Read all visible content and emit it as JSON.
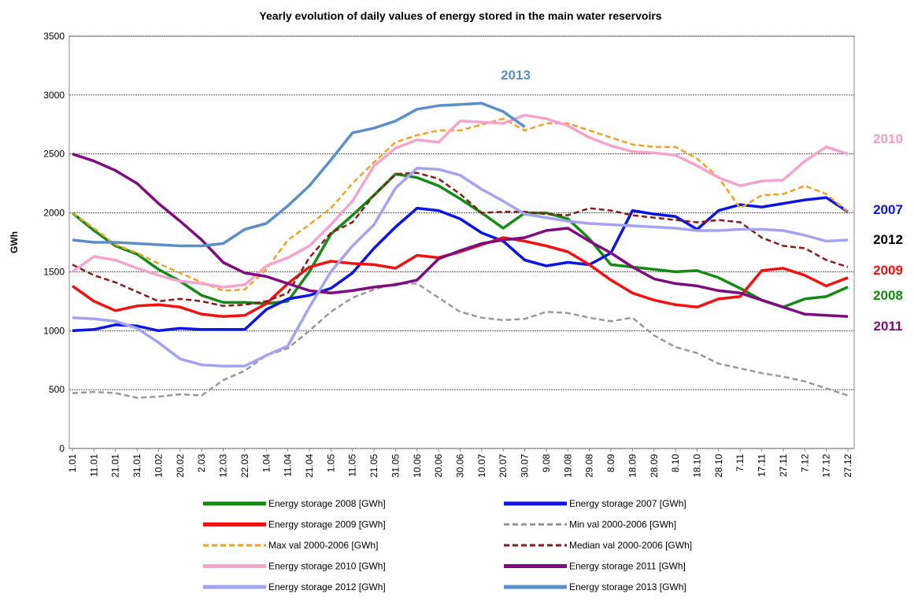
{
  "chart_data": {
    "type": "line",
    "title": "Yearly evolution of daily values of energy stored in the main water reservoirs",
    "y_label": "GWh",
    "categories": [
      "1.01",
      "11.01",
      "21.01",
      "31.01",
      "10.02",
      "20.02",
      "2.03",
      "12.03",
      "22.03",
      "1.04",
      "11.04",
      "21.04",
      "1.05",
      "11.05",
      "21.05",
      "31.05",
      "10.06",
      "20.06",
      "30.06",
      "10.07",
      "20.07",
      "30.07",
      "9.08",
      "19.08",
      "29.08",
      "8.09",
      "18.09",
      "28.09",
      "8.10",
      "18.10",
      "28.10",
      "7.11",
      "17.11",
      "27.11",
      "7.12",
      "17.12",
      "27.12"
    ],
    "ylim": [
      0,
      3500
    ],
    "yticks": [
      0,
      500,
      1000,
      1500,
      2000,
      2500,
      3000,
      3500
    ],
    "grid": true,
    "series": [
      {
        "name": "Energy storage 2008 [GWh]",
        "color": "#138a13",
        "dash": false,
        "values": [
          2000,
          1850,
          1720,
          1650,
          1520,
          1420,
          1300,
          1240,
          1240,
          1230,
          1250,
          1500,
          1820,
          1980,
          2150,
          2330,
          2300,
          2230,
          2120,
          2000,
          1870,
          2000,
          2000,
          1950,
          1780,
          1560,
          1540,
          1520,
          1500,
          1510,
          1450,
          1360,
          1260,
          1200,
          1270,
          1290,
          1370
        ]
      },
      {
        "name": "Energy storage 2007 [GWh]",
        "color": "#0a14e6",
        "dash": false,
        "values": [
          1000,
          1010,
          1050,
          1040,
          1000,
          1020,
          1010,
          1010,
          1010,
          1180,
          1270,
          1300,
          1360,
          1490,
          1700,
          1880,
          2040,
          2020,
          1950,
          1830,
          1760,
          1600,
          1550,
          1580,
          1560,
          1660,
          2020,
          1990,
          1970,
          1860,
          2020,
          2070,
          2050,
          2080,
          2110,
          2130,
          2010
        ]
      },
      {
        "name": "Energy storage 2009 [GWh]",
        "color": "#f21010",
        "dash": false,
        "values": [
          1380,
          1250,
          1170,
          1210,
          1220,
          1200,
          1140,
          1120,
          1130,
          1230,
          1400,
          1540,
          1590,
          1570,
          1560,
          1530,
          1640,
          1620,
          1670,
          1730,
          1790,
          1760,
          1720,
          1670,
          1560,
          1430,
          1320,
          1260,
          1220,
          1200,
          1270,
          1290,
          1510,
          1530,
          1470,
          1380,
          1450
        ]
      },
      {
        "name": "Min val 2000-2006 [GWh]",
        "color": "#999999",
        "dash": true,
        "values": [
          470,
          480,
          470,
          430,
          440,
          460,
          450,
          580,
          660,
          790,
          850,
          1000,
          1160,
          1280,
          1350,
          1400,
          1400,
          1280,
          1160,
          1110,
          1090,
          1100,
          1160,
          1150,
          1110,
          1080,
          1110,
          960,
          860,
          810,
          720,
          680,
          640,
          610,
          570,
          510,
          450
        ]
      },
      {
        "name": "Max val 2000-2006 [GWh]",
        "color": "#f5a020",
        "dash": true,
        "values": [
          2000,
          1870,
          1730,
          1660,
          1570,
          1490,
          1410,
          1340,
          1350,
          1520,
          1770,
          1900,
          2040,
          2250,
          2430,
          2600,
          2660,
          2700,
          2700,
          2750,
          2800,
          2700,
          2760,
          2760,
          2700,
          2640,
          2580,
          2560,
          2560,
          2460,
          2300,
          2040,
          2150,
          2160,
          2230,
          2160,
          2010
        ]
      },
      {
        "name": "Median val 2000-2006 [GWh]",
        "color": "#8b1a1a",
        "dash": true,
        "values": [
          1560,
          1470,
          1410,
          1330,
          1250,
          1270,
          1250,
          1210,
          1220,
          1250,
          1320,
          1620,
          1830,
          1920,
          2150,
          2330,
          2340,
          2290,
          2160,
          2000,
          2010,
          2010,
          1990,
          1980,
          2040,
          2020,
          1980,
          1960,
          1940,
          1920,
          1940,
          1920,
          1790,
          1720,
          1700,
          1600,
          1540
        ]
      },
      {
        "name": "Energy storage 2010 [GWh]",
        "color": "#f7a3d0",
        "dash": false,
        "values": [
          1500,
          1630,
          1600,
          1530,
          1470,
          1420,
          1400,
          1370,
          1390,
          1550,
          1620,
          1720,
          1900,
          2100,
          2400,
          2550,
          2620,
          2600,
          2780,
          2770,
          2760,
          2830,
          2800,
          2740,
          2640,
          2570,
          2520,
          2510,
          2490,
          2400,
          2300,
          2230,
          2270,
          2280,
          2440,
          2560,
          2500
        ]
      },
      {
        "name": "Energy storage 2011 [GWh]",
        "color": "#800a80",
        "dash": false,
        "values": [
          2500,
          2440,
          2360,
          2250,
          2080,
          1930,
          1770,
          1580,
          1490,
          1460,
          1400,
          1340,
          1320,
          1340,
          1370,
          1390,
          1430,
          1610,
          1680,
          1740,
          1770,
          1790,
          1850,
          1870,
          1760,
          1660,
          1540,
          1440,
          1400,
          1380,
          1340,
          1320,
          1260,
          1200,
          1140,
          1130,
          1120
        ]
      },
      {
        "name": "Energy storage 2012 [GWh]",
        "color": "#a3a3f2",
        "dash": false,
        "values": [
          1110,
          1100,
          1080,
          1020,
          900,
          760,
          710,
          700,
          700,
          790,
          870,
          1200,
          1500,
          1720,
          1900,
          2210,
          2380,
          2370,
          2320,
          2200,
          2100,
          1990,
          1960,
          1930,
          1910,
          1900,
          1890,
          1880,
          1870,
          1850,
          1850,
          1860,
          1860,
          1850,
          1810,
          1760,
          1770
        ]
      },
      {
        "name": "Energy storage 2013 [GWh]",
        "color": "#5b8fc9",
        "dash": false,
        "values": [
          1770,
          1750,
          1750,
          1740,
          1730,
          1720,
          1720,
          1740,
          1860,
          1910,
          2060,
          2230,
          2450,
          2680,
          2720,
          2780,
          2880,
          2910,
          2920,
          2930,
          2860,
          2730,
          null,
          null,
          null,
          null,
          null,
          null,
          null,
          null,
          null,
          null,
          null,
          null,
          null,
          null,
          null
        ]
      }
    ],
    "annotations": [
      {
        "text": "2013",
        "color": "#5b8fc9"
      },
      {
        "text": "2010",
        "color": "#f59cc8"
      },
      {
        "text": "2007",
        "color": "#0a14e6"
      },
      {
        "text": "2012",
        "color": "#000000"
      },
      {
        "text": "2009",
        "color": "#f21010"
      },
      {
        "text": "2008",
        "color": "#138a13"
      },
      {
        "text": "2011",
        "color": "#800a80"
      }
    ]
  }
}
